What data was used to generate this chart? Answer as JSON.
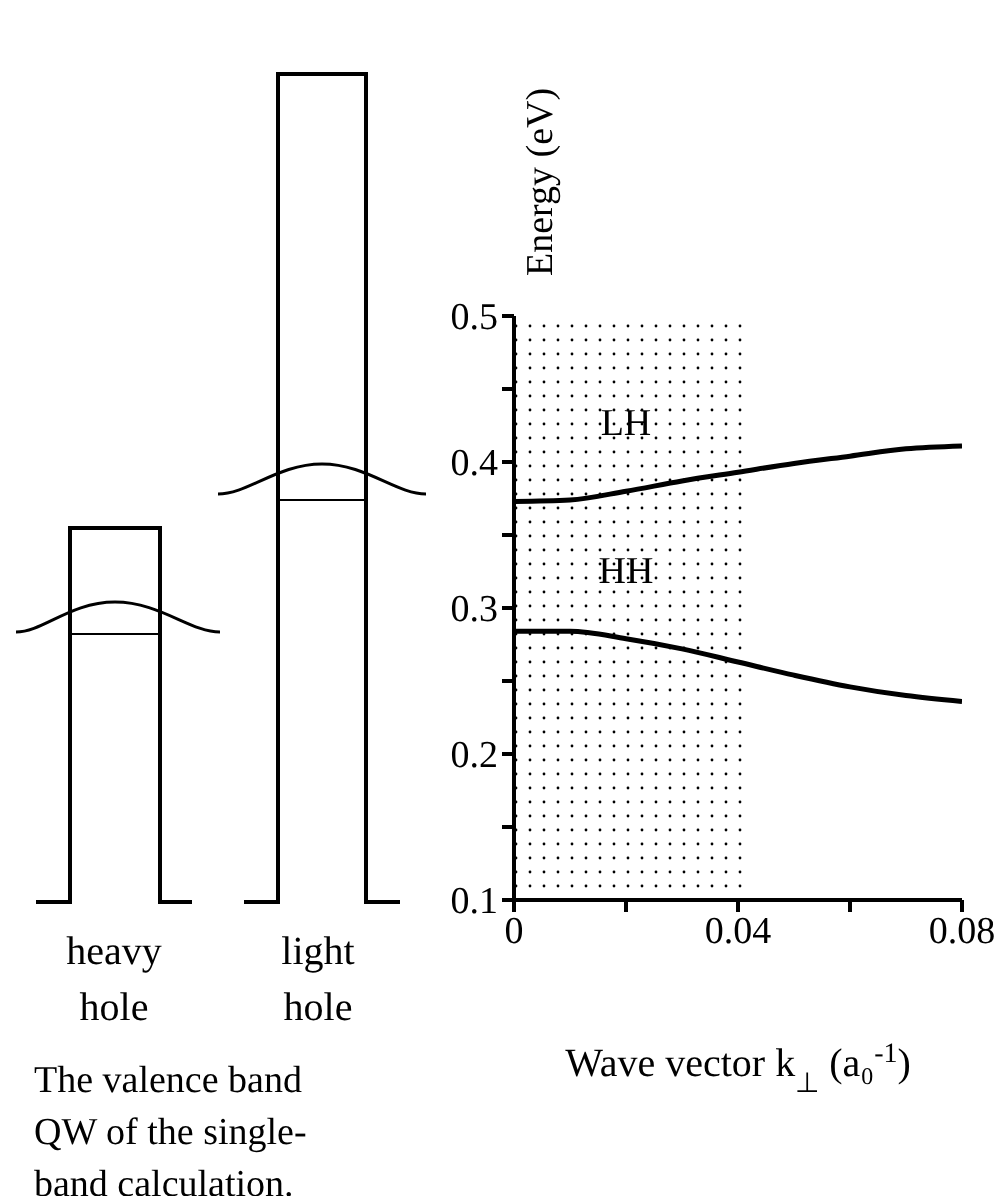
{
  "chart_data": {
    "type": "line",
    "ylabel": "Energy (eV)",
    "xlabel": "Wave vector k$_{⊥}$ (a₀$^{-1}$)",
    "x": [
      0,
      0.01,
      0.02,
      0.03,
      0.04,
      0.05,
      0.06,
      0.07,
      0.08
    ],
    "series": [
      {
        "name": "LH",
        "color": "#000000",
        "values": [
          0.373,
          0.374,
          0.38,
          0.387,
          0.393,
          0.399,
          0.404,
          0.409,
          0.411
        ]
      },
      {
        "name": "HH",
        "color": "#000000",
        "values": [
          0.284,
          0.284,
          0.279,
          0.272,
          0.263,
          0.254,
          0.246,
          0.24,
          0.236
        ]
      }
    ],
    "xlim": [
      0,
      0.08
    ],
    "xticks": [
      0,
      {
        "value": 0.02,
        "label": null
      },
      0.04,
      {
        "value": 0.06,
        "label": null
      },
      0.08
    ],
    "ylim": [
      0.1,
      0.5
    ],
    "yticks": [
      0.1,
      {
        "value": 0.15,
        "label": null
      },
      0.2,
      {
        "value": 0.25,
        "label": null
      },
      0.3,
      {
        "value": 0.35,
        "label": null
      },
      0.4,
      {
        "value": 0.45,
        "label": null
      },
      0.5
    ],
    "bands": [
      {
        "axis": "x",
        "from": 0,
        "to": 0.041,
        "color": "#000000"
      }
    ],
    "marker": "none",
    "line_style": "solid",
    "annotations": [
      "heavy hole",
      "light hole",
      "The valence band QW of the single-band calculation."
    ]
  }
}
